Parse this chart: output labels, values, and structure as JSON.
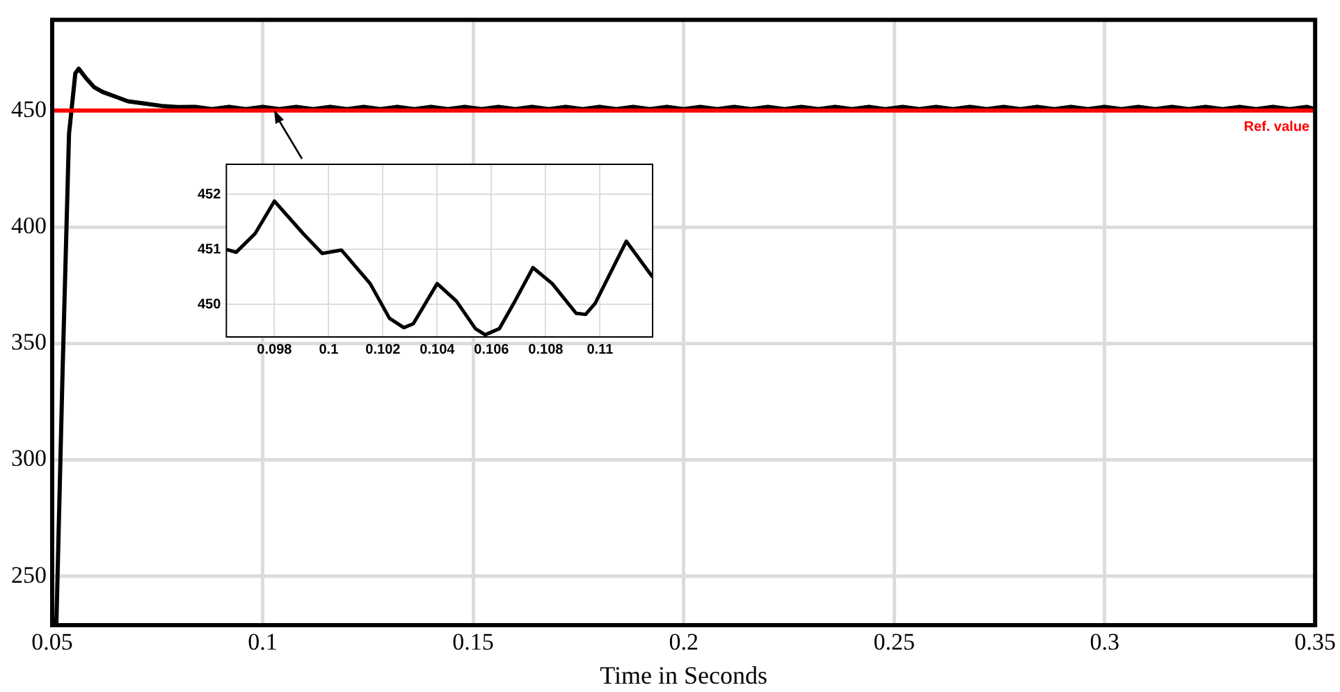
{
  "chart_data": [
    {
      "type": "line",
      "xlabel": "Time in Seconds",
      "xlim": [
        0.05,
        0.35
      ],
      "xticks": [
        0.05,
        0.1,
        0.15,
        0.2,
        0.25,
        0.3,
        0.35
      ],
      "ylim": [
        229,
        489
      ],
      "yticks": [
        250,
        300,
        350,
        400,
        450
      ],
      "grid": true,
      "x": [
        0.05,
        0.051,
        0.0525,
        0.054,
        0.0555,
        0.0563,
        0.058,
        0.06,
        0.062,
        0.065,
        0.068,
        0.072,
        0.076,
        0.08,
        0.084,
        0.088,
        0.092,
        0.096,
        0.1,
        0.104,
        0.108,
        0.112,
        0.116,
        0.12,
        0.124,
        0.128,
        0.132,
        0.136,
        0.14,
        0.144,
        0.148,
        0.152,
        0.156,
        0.16,
        0.164,
        0.168,
        0.172,
        0.176,
        0.18,
        0.184,
        0.188,
        0.192,
        0.196,
        0.2,
        0.204,
        0.208,
        0.212,
        0.216,
        0.22,
        0.224,
        0.228,
        0.232,
        0.236,
        0.24,
        0.244,
        0.248,
        0.252,
        0.256,
        0.26,
        0.264,
        0.268,
        0.272,
        0.276,
        0.28,
        0.284,
        0.288,
        0.292,
        0.296,
        0.3,
        0.304,
        0.308,
        0.312,
        0.316,
        0.32,
        0.324,
        0.328,
        0.332,
        0.336,
        0.34,
        0.344,
        0.348,
        0.35
      ],
      "series": [
        {
          "color": "#000000",
          "values": [
            232,
            230,
            340,
            440,
            466,
            468,
            464,
            460,
            458,
            456,
            454,
            453,
            452,
            451.5,
            451.6,
            450.6,
            451.6,
            450.6,
            451.6,
            450.6,
            451.6,
            450.6,
            451.6,
            450.6,
            451.6,
            450.6,
            451.6,
            450.6,
            451.6,
            450.6,
            451.6,
            450.6,
            451.6,
            450.6,
            451.6,
            450.6,
            451.6,
            450.6,
            451.6,
            450.6,
            451.6,
            450.6,
            451.6,
            450.6,
            451.6,
            450.6,
            451.6,
            450.6,
            451.6,
            450.6,
            451.6,
            450.6,
            451.6,
            450.6,
            451.6,
            450.6,
            451.6,
            450.6,
            451.6,
            450.6,
            451.6,
            450.6,
            451.6,
            450.6,
            451.6,
            450.6,
            451.6,
            450.6,
            451.6,
            450.6,
            451.6,
            450.6,
            451.6,
            450.6,
            451.6,
            450.6,
            451.6,
            450.6,
            451.6,
            450.6,
            451.6,
            450.6
          ]
        }
      ],
      "ref_lines": [
        {
          "axis": "y",
          "value": 450,
          "label": "Ref. value",
          "color": "#ff0000"
        }
      ]
    },
    {
      "type": "line",
      "xlim": [
        0.09623,
        0.11194
      ],
      "xticks": [
        0.098,
        0.1,
        0.102,
        0.104,
        0.106,
        0.108,
        0.11
      ],
      "ylim": [
        449.41,
        452.55
      ],
      "yticks": [
        450,
        451,
        452
      ],
      "grid": true,
      "x": [
        0.09624,
        0.09659,
        0.09729,
        0.098,
        0.09906,
        0.09976,
        0.10047,
        0.10153,
        0.10224,
        0.10277,
        0.10312,
        0.104,
        0.10471,
        0.10541,
        0.10577,
        0.10629,
        0.10682,
        0.10753,
        0.10824,
        0.10912,
        0.10947,
        0.10982,
        0.11097,
        0.11194
      ],
      "series": [
        {
          "color": "#000000",
          "values": [
            451.0,
            450.95,
            451.29,
            451.88,
            451.29,
            450.93,
            450.99,
            450.38,
            449.75,
            449.58,
            449.65,
            450.38,
            450.06,
            449.56,
            449.45,
            449.56,
            450.02,
            450.67,
            450.38,
            449.84,
            449.82,
            450.02,
            451.15,
            450.5
          ]
        }
      ]
    }
  ]
}
